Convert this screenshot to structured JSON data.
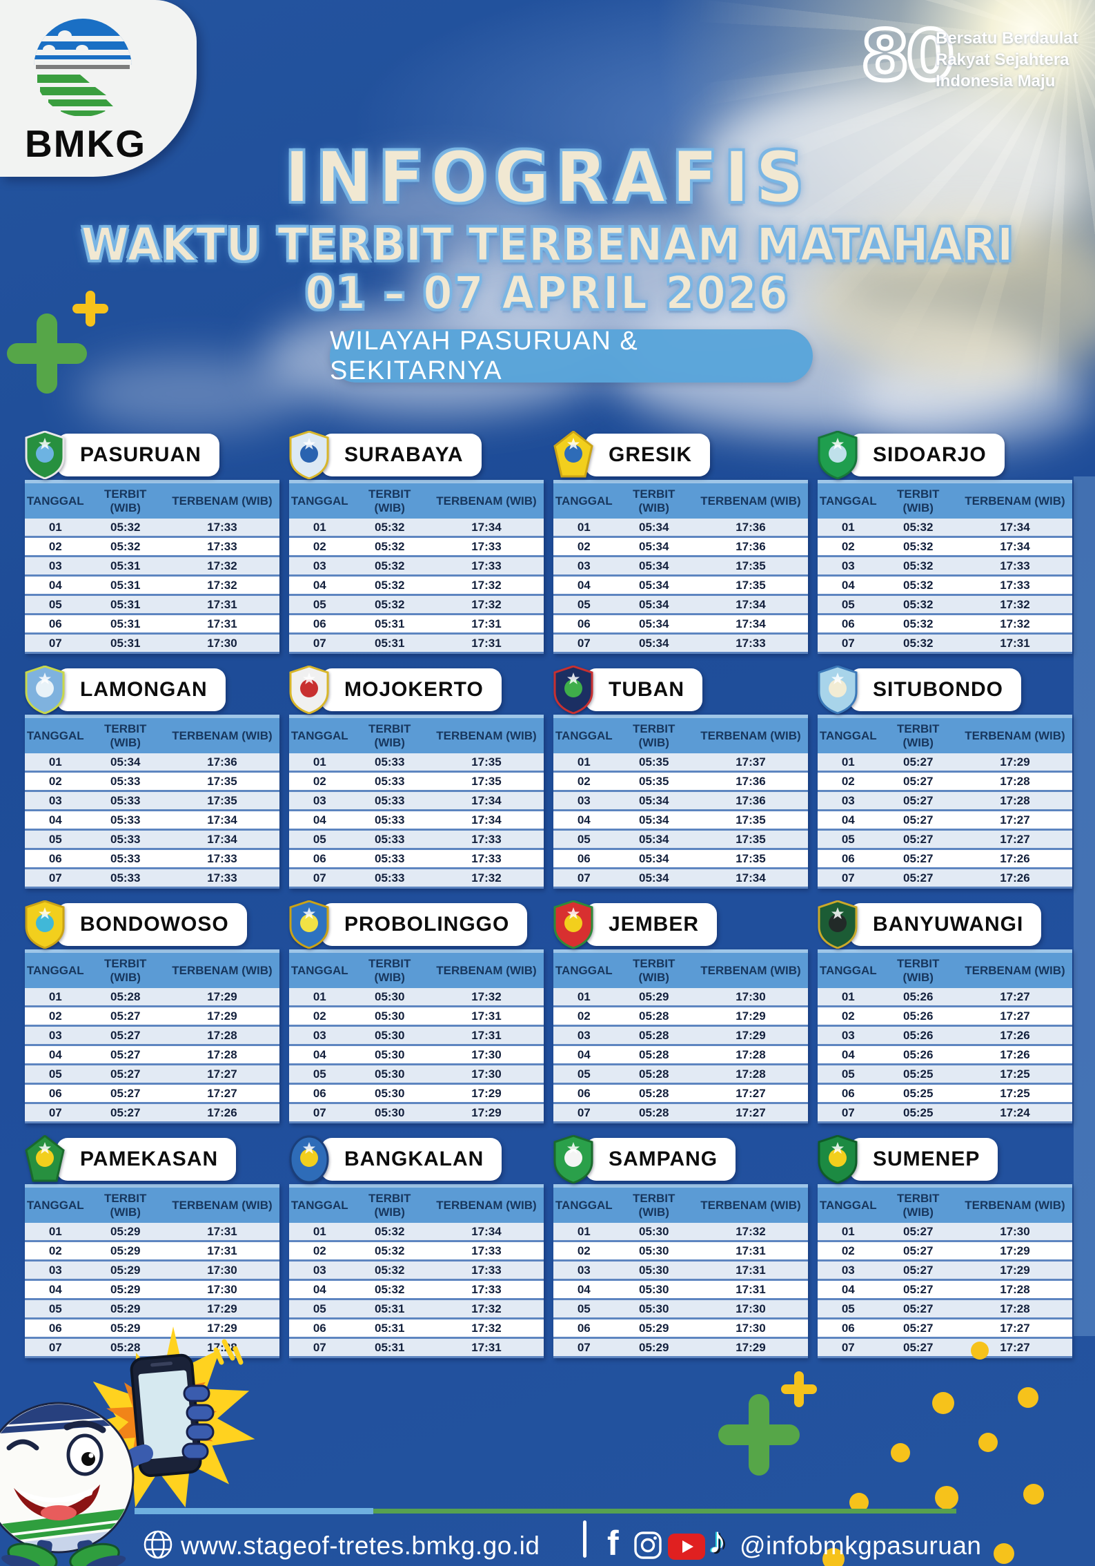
{
  "brand": {
    "name": "BMKG"
  },
  "badge": {
    "number": "80",
    "lines": [
      "Bersatu Berdaulat",
      "Rakyat Sejahtera",
      "Indonesia Maju"
    ]
  },
  "title": {
    "line1": "INFOGRAFIS",
    "line2": "WAKTU TERBIT TERBENAM MATAHARI",
    "line3": "01 – 07 APRIL 2026"
  },
  "subtitle": "WILAYAH PASURUAN & SEKITARNYA",
  "table_headers": [
    "TANGGAL",
    "TERBIT (WIB)",
    "TERBENAM (WIB)"
  ],
  "cities": [
    {
      "name": "PASURUAN",
      "emblem": {
        "icon": "pasuruan-emblem-icon",
        "shape": "shield",
        "primary": "#27903f",
        "secondary": "#6db3e2",
        "border": "#e8e8e8"
      },
      "rows": [
        [
          "01",
          "05:32",
          "17:33"
        ],
        [
          "02",
          "05:32",
          "17:33"
        ],
        [
          "03",
          "05:31",
          "17:32"
        ],
        [
          "04",
          "05:31",
          "17:32"
        ],
        [
          "05",
          "05:31",
          "17:31"
        ],
        [
          "06",
          "05:31",
          "17:31"
        ],
        [
          "07",
          "05:31",
          "17:30"
        ]
      ]
    },
    {
      "name": "SURABAYA",
      "emblem": {
        "icon": "surabaya-emblem-icon",
        "shape": "shield",
        "primary": "#dce9f4",
        "secondary": "#2a63b0",
        "border": "#d8b62a"
      },
      "rows": [
        [
          "01",
          "05:32",
          "17:34"
        ],
        [
          "02",
          "05:32",
          "17:33"
        ],
        [
          "03",
          "05:32",
          "17:33"
        ],
        [
          "04",
          "05:32",
          "17:32"
        ],
        [
          "05",
          "05:32",
          "17:32"
        ],
        [
          "06",
          "05:31",
          "17:31"
        ],
        [
          "07",
          "05:31",
          "17:31"
        ]
      ]
    },
    {
      "name": "GRESIK",
      "emblem": {
        "icon": "gresik-emblem-icon",
        "shape": "pentagon",
        "primary": "#f2cf1d",
        "secondary": "#2e6cb8",
        "border": "#caa316"
      },
      "rows": [
        [
          "01",
          "05:34",
          "17:36"
        ],
        [
          "02",
          "05:34",
          "17:36"
        ],
        [
          "03",
          "05:34",
          "17:35"
        ],
        [
          "04",
          "05:34",
          "17:35"
        ],
        [
          "05",
          "05:34",
          "17:34"
        ],
        [
          "06",
          "05:34",
          "17:34"
        ],
        [
          "07",
          "05:34",
          "17:33"
        ]
      ]
    },
    {
      "name": "SIDOARJO",
      "emblem": {
        "icon": "sidoarjo-emblem-icon",
        "shape": "shield",
        "primary": "#1f9e4e",
        "secondary": "#bfe0ea",
        "border": "#17763a"
      },
      "rows": [
        [
          "01",
          "05:32",
          "17:34"
        ],
        [
          "02",
          "05:32",
          "17:34"
        ],
        [
          "03",
          "05:32",
          "17:33"
        ],
        [
          "04",
          "05:32",
          "17:33"
        ],
        [
          "05",
          "05:32",
          "17:32"
        ],
        [
          "06",
          "05:32",
          "17:32"
        ],
        [
          "07",
          "05:32",
          "17:31"
        ]
      ]
    },
    {
      "name": "LAMONGAN",
      "emblem": {
        "icon": "lamongan-emblem-icon",
        "shape": "shield",
        "primary": "#7fb2de",
        "secondary": "#e8f2f8",
        "border": "#c8d84a"
      },
      "rows": [
        [
          "01",
          "05:34",
          "17:36"
        ],
        [
          "02",
          "05:33",
          "17:35"
        ],
        [
          "03",
          "05:33",
          "17:35"
        ],
        [
          "04",
          "05:33",
          "17:34"
        ],
        [
          "05",
          "05:33",
          "17:34"
        ],
        [
          "06",
          "05:33",
          "17:33"
        ],
        [
          "07",
          "05:33",
          "17:33"
        ]
      ]
    },
    {
      "name": "MOJOKERTO",
      "emblem": {
        "icon": "mojokerto-emblem-icon",
        "shape": "shield",
        "primary": "#f0f0f0",
        "secondary": "#c83030",
        "border": "#d8b62a"
      },
      "rows": [
        [
          "01",
          "05:33",
          "17:35"
        ],
        [
          "02",
          "05:33",
          "17:35"
        ],
        [
          "03",
          "05:33",
          "17:34"
        ],
        [
          "04",
          "05:33",
          "17:34"
        ],
        [
          "05",
          "05:33",
          "17:33"
        ],
        [
          "06",
          "05:33",
          "17:33"
        ],
        [
          "07",
          "05:33",
          "17:32"
        ]
      ]
    },
    {
      "name": "TUBAN",
      "emblem": {
        "icon": "tuban-emblem-icon",
        "shape": "shield",
        "primary": "#1b2f63",
        "secondary": "#3fae4a",
        "border": "#c83030"
      },
      "rows": [
        [
          "01",
          "05:35",
          "17:37"
        ],
        [
          "02",
          "05:35",
          "17:36"
        ],
        [
          "03",
          "05:34",
          "17:36"
        ],
        [
          "04",
          "05:34",
          "17:35"
        ],
        [
          "05",
          "05:34",
          "17:35"
        ],
        [
          "06",
          "05:34",
          "17:35"
        ],
        [
          "07",
          "05:34",
          "17:34"
        ]
      ]
    },
    {
      "name": "SITUBONDO",
      "emblem": {
        "icon": "situbondo-emblem-icon",
        "shape": "shield",
        "primary": "#a8d4ea",
        "secondary": "#f2ecd4",
        "border": "#3a78b8"
      },
      "rows": [
        [
          "01",
          "05:27",
          "17:29"
        ],
        [
          "02",
          "05:27",
          "17:28"
        ],
        [
          "03",
          "05:27",
          "17:28"
        ],
        [
          "04",
          "05:27",
          "17:27"
        ],
        [
          "05",
          "05:27",
          "17:27"
        ],
        [
          "06",
          "05:27",
          "17:26"
        ],
        [
          "07",
          "05:27",
          "17:26"
        ]
      ]
    },
    {
      "name": "BONDOWOSO",
      "emblem": {
        "icon": "bondowoso-emblem-icon",
        "shape": "shield",
        "primary": "#f2cf1d",
        "secondary": "#40b8d8",
        "border": "#caa316"
      },
      "rows": [
        [
          "01",
          "05:28",
          "17:29"
        ],
        [
          "02",
          "05:27",
          "17:29"
        ],
        [
          "03",
          "05:27",
          "17:28"
        ],
        [
          "04",
          "05:27",
          "17:28"
        ],
        [
          "05",
          "05:27",
          "17:27"
        ],
        [
          "06",
          "05:27",
          "17:27"
        ],
        [
          "07",
          "05:27",
          "17:26"
        ]
      ]
    },
    {
      "name": "PROBOLINGGO",
      "emblem": {
        "icon": "probolinggo-emblem-icon",
        "shape": "shield",
        "primary": "#2e72c0",
        "secondary": "#f2e245",
        "border": "#caa316"
      },
      "rows": [
        [
          "01",
          "05:30",
          "17:32"
        ],
        [
          "02",
          "05:30",
          "17:31"
        ],
        [
          "03",
          "05:30",
          "17:31"
        ],
        [
          "04",
          "05:30",
          "17:30"
        ],
        [
          "05",
          "05:30",
          "17:30"
        ],
        [
          "06",
          "05:30",
          "17:29"
        ],
        [
          "07",
          "05:30",
          "17:29"
        ]
      ]
    },
    {
      "name": "JEMBER",
      "emblem": {
        "icon": "jember-emblem-icon",
        "shape": "shield",
        "primary": "#d83030",
        "secondary": "#f2cf1d",
        "border": "#2e8a3a"
      },
      "rows": [
        [
          "01",
          "05:29",
          "17:30"
        ],
        [
          "02",
          "05:28",
          "17:29"
        ],
        [
          "03",
          "05:28",
          "17:29"
        ],
        [
          "04",
          "05:28",
          "17:28"
        ],
        [
          "05",
          "05:28",
          "17:28"
        ],
        [
          "06",
          "05:28",
          "17:27"
        ],
        [
          "07",
          "05:28",
          "17:27"
        ]
      ]
    },
    {
      "name": "BANYUWANGI",
      "emblem": {
        "icon": "banyuwangi-emblem-icon",
        "shape": "shield",
        "primary": "#1c5c35",
        "secondary": "#222a28",
        "border": "#caa92a"
      },
      "rows": [
        [
          "01",
          "05:26",
          "17:27"
        ],
        [
          "02",
          "05:26",
          "17:27"
        ],
        [
          "03",
          "05:26",
          "17:26"
        ],
        [
          "04",
          "05:26",
          "17:26"
        ],
        [
          "05",
          "05:25",
          "17:25"
        ],
        [
          "06",
          "05:25",
          "17:25"
        ],
        [
          "07",
          "05:25",
          "17:24"
        ]
      ]
    },
    {
      "name": "PAMEKASAN",
      "emblem": {
        "icon": "pamekasan-emblem-icon",
        "shape": "pentagon",
        "primary": "#27903f",
        "secondary": "#f2cf1d",
        "border": "#1a6a2c"
      },
      "rows": [
        [
          "01",
          "05:29",
          "17:31"
        ],
        [
          "02",
          "05:29",
          "17:31"
        ],
        [
          "03",
          "05:29",
          "17:30"
        ],
        [
          "04",
          "05:29",
          "17:30"
        ],
        [
          "05",
          "05:29",
          "17:29"
        ],
        [
          "06",
          "05:29",
          "17:29"
        ],
        [
          "07",
          "05:28",
          "17:28"
        ]
      ]
    },
    {
      "name": "BANGKALAN",
      "emblem": {
        "icon": "bangkalan-emblem-icon",
        "shape": "oval",
        "primary": "#2e6cb8",
        "secondary": "#f2cf1d",
        "border": "#1b3f7a"
      },
      "rows": [
        [
          "01",
          "05:32",
          "17:34"
        ],
        [
          "02",
          "05:32",
          "17:33"
        ],
        [
          "03",
          "05:32",
          "17:33"
        ],
        [
          "04",
          "05:32",
          "17:33"
        ],
        [
          "05",
          "05:31",
          "17:32"
        ],
        [
          "06",
          "05:31",
          "17:32"
        ],
        [
          "07",
          "05:31",
          "17:31"
        ]
      ]
    },
    {
      "name": "SAMPANG",
      "emblem": {
        "icon": "sampang-emblem-icon",
        "shape": "shield",
        "primary": "#2aa04a",
        "secondary": "#f4f4f4",
        "border": "#1a6a2c"
      },
      "rows": [
        [
          "01",
          "05:30",
          "17:32"
        ],
        [
          "02",
          "05:30",
          "17:31"
        ],
        [
          "03",
          "05:30",
          "17:31"
        ],
        [
          "04",
          "05:30",
          "17:31"
        ],
        [
          "05",
          "05:30",
          "17:30"
        ],
        [
          "06",
          "05:29",
          "17:30"
        ],
        [
          "07",
          "05:29",
          "17:29"
        ]
      ]
    },
    {
      "name": "SUMENEP",
      "emblem": {
        "icon": "sumenep-emblem-icon",
        "shape": "shield",
        "primary": "#1c8a42",
        "secondary": "#f2cf1d",
        "border": "#0f5c28"
      },
      "rows": [
        [
          "01",
          "05:27",
          "17:30"
        ],
        [
          "02",
          "05:27",
          "17:29"
        ],
        [
          "03",
          "05:27",
          "17:29"
        ],
        [
          "04",
          "05:27",
          "17:28"
        ],
        [
          "05",
          "05:27",
          "17:28"
        ],
        [
          "06",
          "05:27",
          "17:27"
        ],
        [
          "07",
          "05:27",
          "17:27"
        ]
      ]
    }
  ],
  "footer": {
    "website": "www.stageof-tretes.bmkg.go.id",
    "handle": "@infobmkgpasuruan",
    "icons": [
      "globe-icon",
      "facebook-icon",
      "instagram-icon",
      "youtube-icon",
      "tiktok-icon"
    ]
  },
  "colors": {
    "background": "#20509c",
    "table_header": "#5b9bd5",
    "table_header_text": "#17365d",
    "row_alt": "#e2eaf4",
    "title_fill": "#f1e8d2",
    "title_outline": "#79b5e4",
    "pill": "#58a4da",
    "plus_green": "#56a648",
    "plus_yellow": "#f6c21b",
    "youtube_red": "#e02020",
    "footer_line_blue": "#6fb0e0",
    "footer_line_green": "#57a150"
  }
}
